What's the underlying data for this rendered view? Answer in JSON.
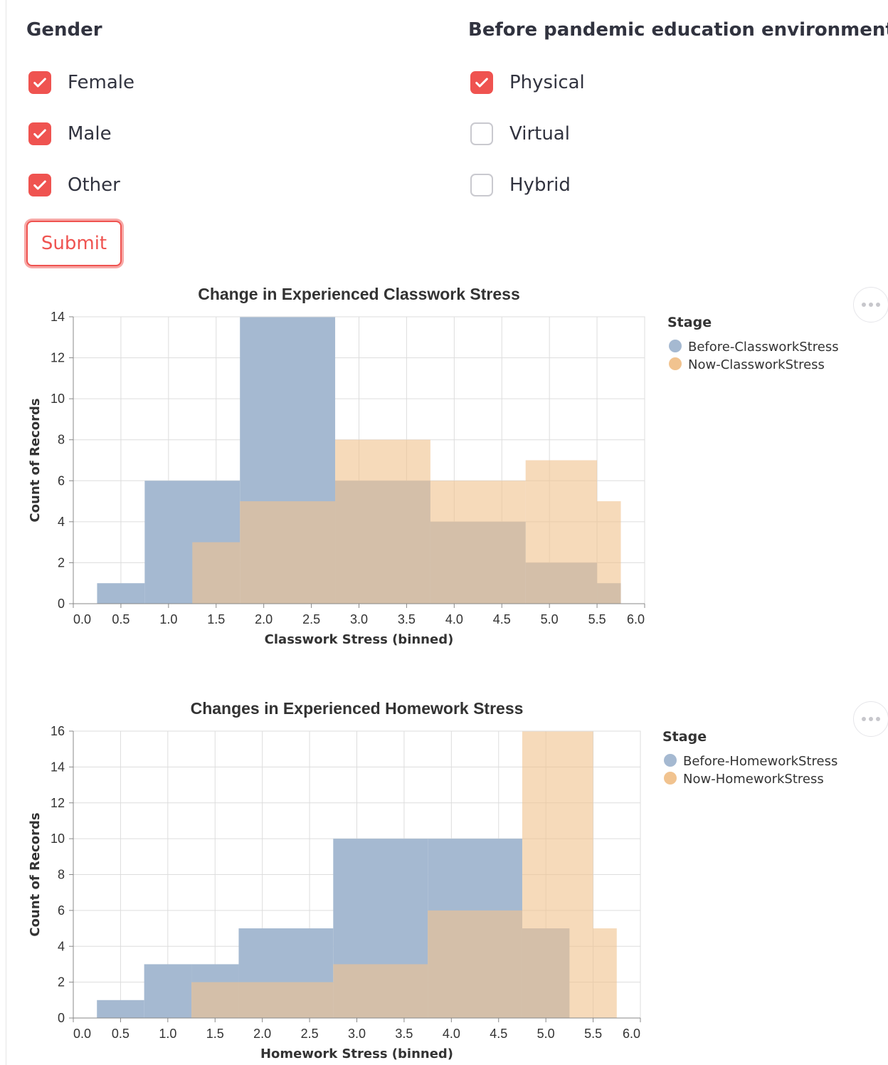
{
  "filters": {
    "gender": {
      "title": "Gender",
      "options": [
        {
          "label": "Female",
          "checked": true
        },
        {
          "label": "Male",
          "checked": true
        },
        {
          "label": "Other",
          "checked": true
        }
      ]
    },
    "environment": {
      "title": "Before pandemic education environment",
      "options": [
        {
          "label": "Physical",
          "checked": true
        },
        {
          "label": "Virtual",
          "checked": false
        },
        {
          "label": "Hybrid",
          "checked": false
        }
      ]
    },
    "submit_label": "Submit"
  },
  "colors": {
    "accent": "#ef5350",
    "before": "#a5b9d1",
    "now": "#f1c38f",
    "overlap": "#c7a27b",
    "axis": "#888888",
    "grid": "#dddddd",
    "text": "#31333f"
  },
  "icons": {
    "checkbox": "check-icon",
    "chart_menu": "ellipsis-icon"
  },
  "chart_data": [
    {
      "type": "bar",
      "title": "Change in Experienced Classwork Stress",
      "xlabel": "Classwork Stress (binned)",
      "ylabel": "Count of Records",
      "xlim": [
        0,
        6
      ],
      "ylim": [
        0,
        14
      ],
      "x_ticks": [
        "0.0",
        "0.5",
        "1.0",
        "1.5",
        "2.0",
        "2.5",
        "3.0",
        "3.5",
        "4.0",
        "4.5",
        "5.0",
        "5.5",
        "6.0"
      ],
      "y_ticks": [
        "0",
        "2",
        "4",
        "6",
        "8",
        "10",
        "12",
        "14"
      ],
      "legend_title": "Stage",
      "legend_position": "right",
      "grid": true,
      "series": [
        {
          "name": "Before-ClassworkStress",
          "bins": [
            [
              0.25,
              0.75,
              1
            ],
            [
              0.75,
              1.75,
              6
            ],
            [
              1.75,
              2.75,
              14
            ],
            [
              2.75,
              3.75,
              6
            ],
            [
              3.75,
              4.75,
              4
            ],
            [
              4.75,
              5.5,
              2
            ],
            [
              5.5,
              5.75,
              1
            ]
          ]
        },
        {
          "name": "Now-ClassworkStress",
          "bins": [
            [
              1.25,
              1.75,
              3
            ],
            [
              1.75,
              2.75,
              5
            ],
            [
              2.75,
              3.75,
              8
            ],
            [
              3.75,
              4.75,
              6
            ],
            [
              4.75,
              5.5,
              7
            ],
            [
              5.5,
              5.75,
              5
            ]
          ]
        }
      ]
    },
    {
      "type": "bar",
      "title": "Changes in Experienced Homework Stress",
      "xlabel": "Homework Stress (binned)",
      "ylabel": "Count of Records",
      "xlim": [
        0,
        6
      ],
      "ylim": [
        0,
        16
      ],
      "x_ticks": [
        "0.0",
        "0.5",
        "1.0",
        "1.5",
        "2.0",
        "2.5",
        "3.0",
        "3.5",
        "4.0",
        "4.5",
        "5.0",
        "5.5",
        "6.0"
      ],
      "y_ticks": [
        "0",
        "2",
        "4",
        "6",
        "8",
        "10",
        "12",
        "14",
        "16"
      ],
      "legend_title": "Stage",
      "legend_position": "right",
      "grid": true,
      "series": [
        {
          "name": "Before-HomeworkStress",
          "bins": [
            [
              0.25,
              0.75,
              1
            ],
            [
              0.75,
              1.25,
              3
            ],
            [
              1.25,
              1.75,
              3
            ],
            [
              1.75,
              2.75,
              5
            ],
            [
              2.75,
              3.75,
              10
            ],
            [
              3.75,
              4.75,
              10
            ],
            [
              4.75,
              5.25,
              5
            ]
          ]
        },
        {
          "name": "Now-HomeworkStress",
          "bins": [
            [
              1.25,
              1.75,
              2
            ],
            [
              1.75,
              2.75,
              2
            ],
            [
              2.75,
              3.75,
              3
            ],
            [
              3.75,
              4.75,
              6
            ],
            [
              4.75,
              5.5,
              16
            ],
            [
              5.5,
              5.75,
              5
            ]
          ]
        }
      ]
    }
  ]
}
